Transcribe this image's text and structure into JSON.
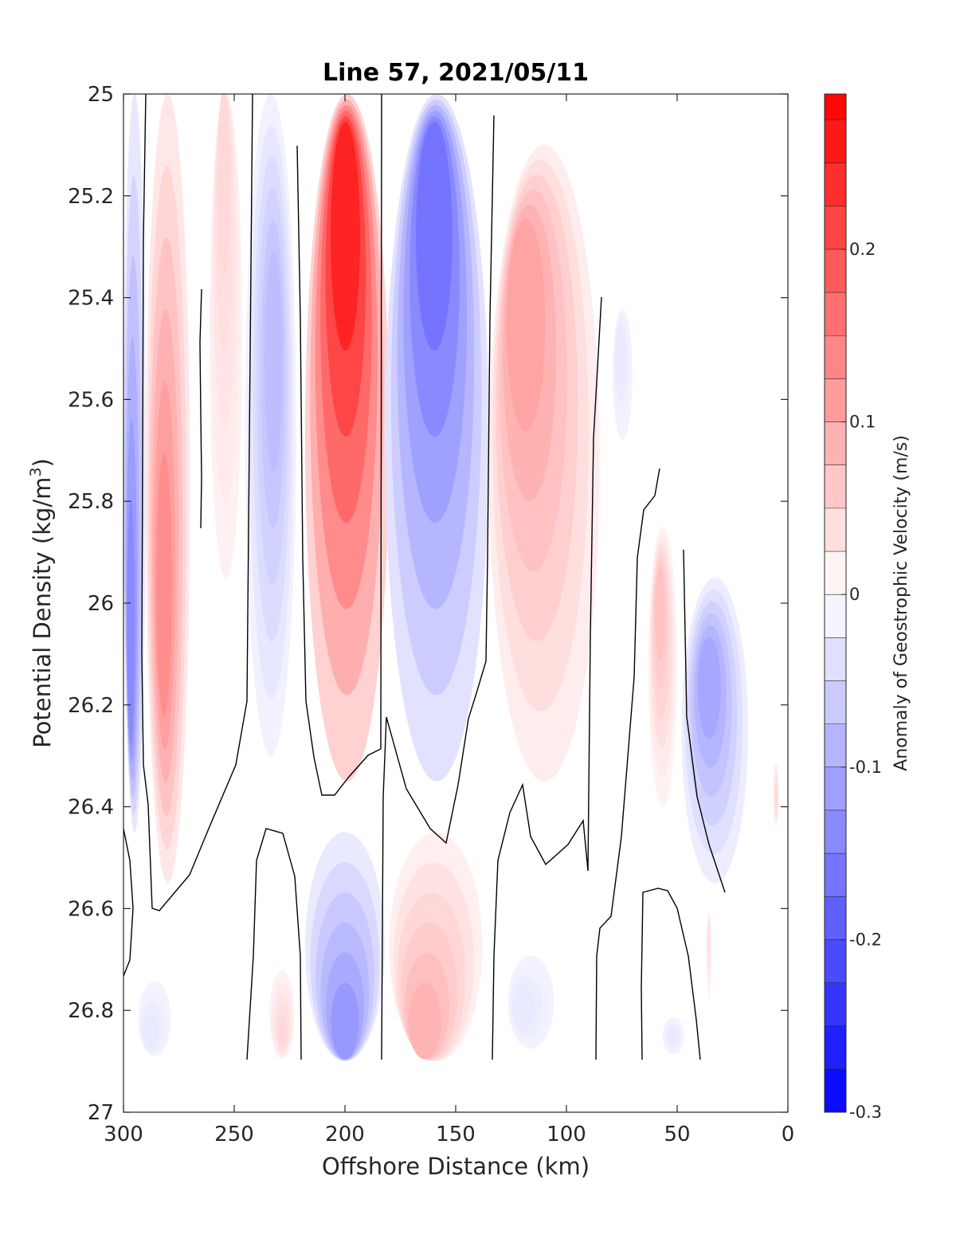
{
  "chart_data": {
    "type": "heatmap",
    "subtype": "filled-contour",
    "title": "Line 57, 2021/05/11",
    "xlabel": "Offshore Distance (km)",
    "ylabel_main": "Potential Density (kg/m",
    "ylabel_sup": "3",
    "ylabel_end": ")",
    "xlim": [
      300,
      0
    ],
    "ylim": [
      27,
      25
    ],
    "y_reversed": true,
    "x_reversed": true,
    "x_ticks": [
      300,
      250,
      200,
      150,
      100,
      50,
      0
    ],
    "x_tick_labels": [
      "300",
      "250",
      "200",
      "150",
      "100",
      "50",
      "0"
    ],
    "y_ticks": [
      25,
      25.2,
      25.4,
      25.6,
      25.8,
      26,
      26.2,
      26.4,
      26.6,
      26.8,
      27
    ],
    "y_tick_labels": [
      "25",
      "25.2",
      "25.4",
      "25.6",
      "25.8",
      "26",
      "26.2",
      "26.4",
      "26.6",
      "26.8",
      "27"
    ],
    "grid": false,
    "colorbar": {
      "label": "Anomaly of Geostrophic Velocity (m/s)",
      "clim": [
        -0.3,
        0.29
      ],
      "tick_values": [
        0.2,
        0.1,
        0,
        -0.1,
        -0.2,
        -0.3
      ],
      "tick_labels": [
        "0.2",
        "0.1",
        "0",
        "-0.1",
        "-0.2",
        "-0.3"
      ],
      "levels": [
        -0.3,
        -0.275,
        -0.25,
        -0.225,
        -0.2,
        -0.175,
        -0.15,
        -0.125,
        -0.1,
        -0.075,
        -0.05,
        -0.025,
        0,
        0.025,
        0.05,
        0.075,
        0.1,
        0.125,
        0.15,
        0.175,
        0.2,
        0.225,
        0.25,
        0.275,
        0.29
      ],
      "negative_color": "#0000ff",
      "positive_color": "#ff0000",
      "neutral_color": "#ffffff"
    },
    "anomaly_features": [
      {
        "x_range": [
          300,
          290
        ],
        "density_range": [
          25,
          26.45
        ],
        "peak_value": -0.16,
        "peak_location": [
          297,
          26.1
        ]
      },
      {
        "x_range": [
          290,
          270
        ],
        "density_range": [
          25,
          26.55
        ],
        "peak_value": 0.15,
        "peak_location": [
          282,
          26.0
        ]
      },
      {
        "x_range": [
          262,
          245
        ],
        "density_range": [
          25,
          26.1
        ],
        "peak_value": 0.05,
        "peak_location": [
          255,
          25.1
        ]
      },
      {
        "x_range": [
          245,
          222
        ],
        "density_range": [
          25,
          26.3
        ],
        "peak_value": -0.09,
        "peak_location": [
          232,
          25.5
        ]
      },
      {
        "x_range": [
          218,
          180
        ],
        "density_range": [
          25,
          26.35
        ],
        "peak_value": 0.29,
        "peak_location": [
          200,
          25.2
        ]
      },
      {
        "x_range": [
          182,
          135
        ],
        "density_range": [
          25,
          26.35
        ],
        "peak_value": -0.19,
        "peak_location": [
          160,
          25.2
        ]
      },
      {
        "x_range": [
          135,
          85
        ],
        "density_range": [
          25.1,
          26.35
        ],
        "peak_value": 0.12,
        "peak_location": [
          120,
          25.4
        ]
      },
      {
        "x_range": [
          80,
          68
        ],
        "density_range": [
          25.4,
          25.75
        ],
        "peak_value": -0.03,
        "peak_location": [
          76,
          25.5
        ]
      },
      {
        "x_range": [
          63,
          50
        ],
        "density_range": [
          25.85,
          26.4
        ],
        "peak_value": 0.08,
        "peak_location": [
          58,
          26.0
        ]
      },
      {
        "x_range": [
          48,
          18
        ],
        "density_range": [
          25.95,
          26.55
        ],
        "peak_value": -0.12,
        "peak_location": [
          36,
          26.15
        ]
      },
      {
        "x_range": [
          7,
          4
        ],
        "density_range": [
          26.3,
          26.45
        ],
        "peak_value": 0.05,
        "peak_location": [
          5,
          26.38
        ]
      },
      {
        "x_range": [
          295,
          275
        ],
        "density_range": [
          26.7,
          26.9
        ],
        "peak_value": -0.03,
        "peak_location": [
          288,
          26.85
        ]
      },
      {
        "x_range": [
          235,
          222
        ],
        "density_range": [
          26.7,
          26.9
        ],
        "peak_value": 0.05,
        "peak_location": [
          228,
          26.85
        ]
      },
      {
        "x_range": [
          218,
          182
        ],
        "density_range": [
          26.45,
          26.9
        ],
        "peak_value": -0.14,
        "peak_location": [
          200,
          26.85
        ]
      },
      {
        "x_range": [
          180,
          138
        ],
        "density_range": [
          26.45,
          26.9
        ],
        "peak_value": 0.1,
        "peak_location": [
          165,
          26.85
        ]
      },
      {
        "x_range": [
          128,
          100
        ],
        "density_range": [
          26.65,
          26.9
        ],
        "peak_value": -0.03,
        "peak_location": [
          120,
          26.8
        ]
      },
      {
        "x_range": [
          58,
          45
        ],
        "density_range": [
          26.8,
          26.9
        ],
        "peak_value": -0.03,
        "peak_location": [
          52,
          26.85
        ]
      },
      {
        "x_range": [
          37,
          34
        ],
        "density_range": [
          26.6,
          26.8
        ],
        "peak_value": 0.04,
        "peak_location": [
          36,
          26.65
        ]
      }
    ]
  }
}
